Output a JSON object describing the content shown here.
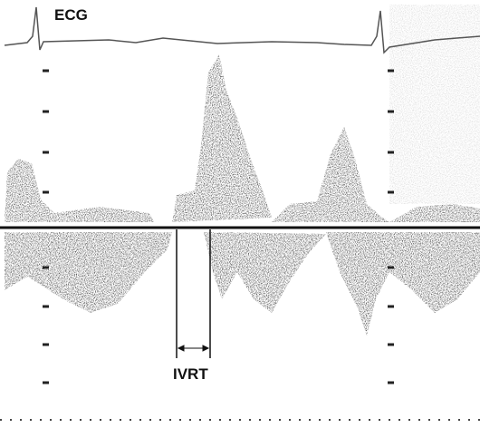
{
  "labels": {
    "ecg": "ECG",
    "ivrt": "IVRT"
  }
}
